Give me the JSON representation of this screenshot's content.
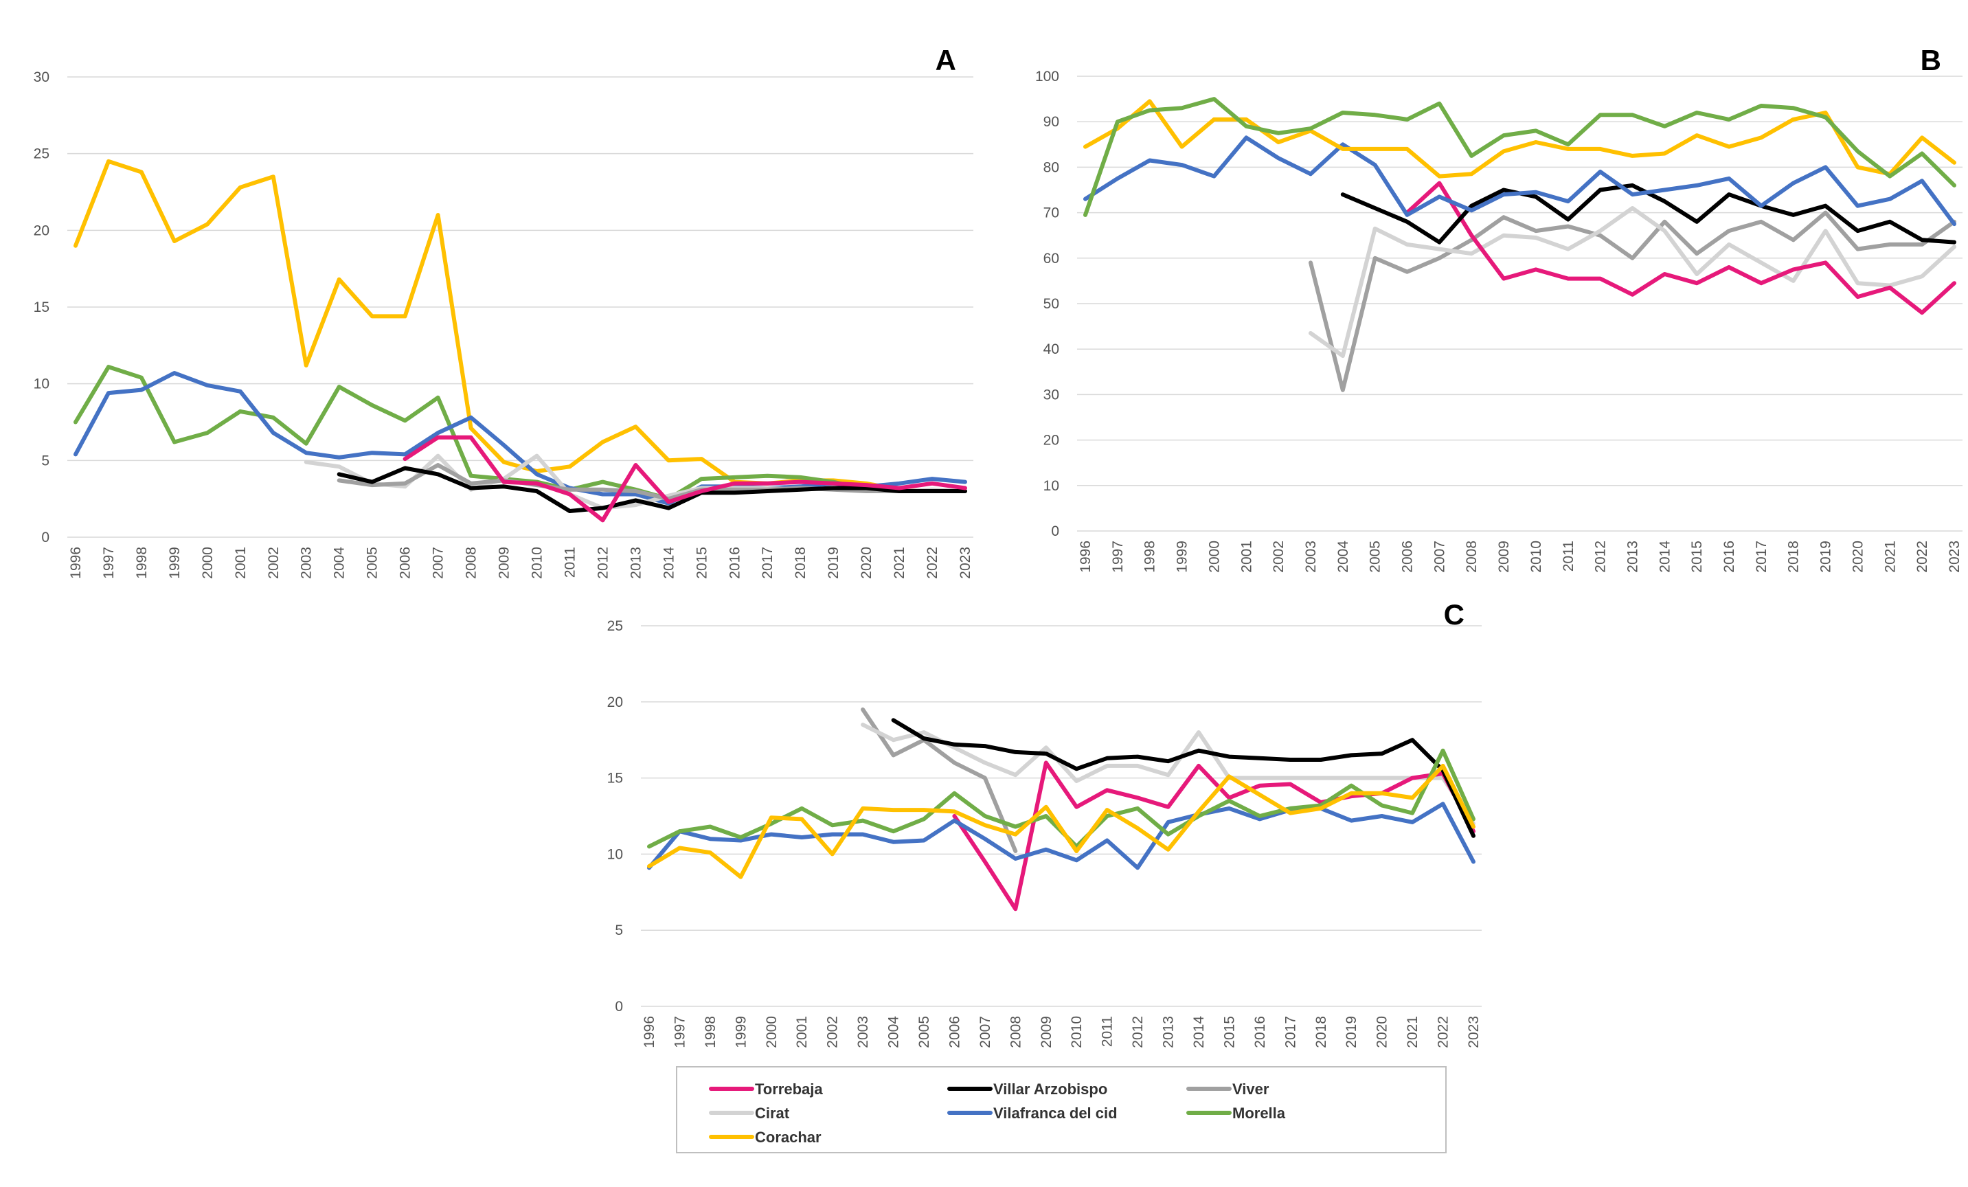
{
  "years": [
    "1996",
    "1997",
    "1998",
    "1999",
    "2000",
    "2001",
    "2002",
    "2003",
    "2004",
    "2005",
    "2006",
    "2007",
    "2008",
    "2009",
    "2010",
    "2011",
    "2012",
    "2013",
    "2014",
    "2015",
    "2016",
    "2017",
    "2018",
    "2019",
    "2020",
    "2021",
    "2022",
    "2023"
  ],
  "legend": {
    "items": [
      {
        "key": "Torrebaja",
        "label": "Torrebaja",
        "color": "#e6197a"
      },
      {
        "key": "Villar",
        "label": "Villar Arzobispo",
        "color": "#000000"
      },
      {
        "key": "Viver",
        "label": "Viver",
        "color": "#a0a0a0"
      },
      {
        "key": "Cirat",
        "label": "Cirat",
        "color": "#d3d3d3"
      },
      {
        "key": "Vilafranca",
        "label": "Vilafranca del cid",
        "color": "#4472c4"
      },
      {
        "key": "Morella",
        "label": "Morella",
        "color": "#70ad47"
      },
      {
        "key": "Corachar",
        "label": "Corachar",
        "color": "#ffc000"
      }
    ]
  },
  "chart_data": [
    {
      "type": "line",
      "panel": "A",
      "ylim": [
        0,
        30
      ],
      "yticks": [
        "0",
        "5",
        "10",
        "15",
        "20",
        "25",
        "30"
      ],
      "series": [
        {
          "name": "Corachar",
          "values": [
            19,
            24.5,
            23.8,
            19.3,
            20.4,
            22.8,
            23.5,
            11.2,
            16.8,
            14.4,
            14.4,
            21,
            7.1,
            4.9,
            4.3,
            4.6,
            6.2,
            7.2,
            5,
            5.1,
            3.6,
            3.5,
            3.7,
            3.7,
            3.5,
            3.1,
            3.0,
            3.0
          ]
        },
        {
          "name": "Morella",
          "values": [
            7.5,
            11.1,
            10.4,
            6.2,
            6.8,
            8.2,
            7.8,
            6.1,
            9.8,
            8.6,
            7.6,
            9.1,
            4.0,
            3.8,
            3.6,
            3.1,
            3.6,
            3.1,
            2.5,
            3.8,
            3.9,
            4.0,
            3.9,
            3.6,
            3.1,
            3.0,
            3.0,
            3.0
          ]
        },
        {
          "name": "Vilafranca del cid",
          "values": [
            5.4,
            9.4,
            9.6,
            10.7,
            9.9,
            9.5,
            6.8,
            5.5,
            5.2,
            5.5,
            5.4,
            6.8,
            7.8,
            6,
            4.1,
            3.2,
            2.8,
            2.8,
            2.2,
            3.3,
            3.3,
            3.2,
            3.3,
            3.5,
            3.3,
            3.5,
            3.8,
            3.6
          ]
        },
        {
          "name": "Cirat",
          "values": [
            null,
            null,
            null,
            null,
            null,
            null,
            null,
            4.9,
            4.6,
            3.5,
            3.3,
            5.3,
            3.1,
            3.8,
            5.3,
            2.8,
            1.9,
            2.1,
            2.7,
            3.2,
            3.2,
            3.2,
            3.1,
            3.2,
            3.2,
            3.0,
            3.1,
            3.0
          ]
        },
        {
          "name": "Viver",
          "values": [
            null,
            null,
            null,
            null,
            null,
            null,
            null,
            null,
            3.7,
            3.4,
            3.5,
            4.7,
            3.5,
            3.7,
            3.4,
            3.1,
            3.1,
            3.0,
            2.5,
            3.1,
            3.1,
            3.1,
            3.2,
            3.1,
            3.0,
            3.0,
            3.0,
            3.0
          ]
        },
        {
          "name": "Villar Arzobispo",
          "values": [
            null,
            null,
            null,
            null,
            null,
            null,
            null,
            null,
            4.1,
            3.6,
            4.5,
            4.1,
            3.2,
            3.3,
            3.0,
            1.7,
            1.9,
            2.4,
            1.9,
            2.9,
            2.9,
            3.0,
            3.1,
            3.2,
            3.2,
            3.0,
            3.0,
            3.0
          ]
        },
        {
          "name": "Torrebaja",
          "values": [
            null,
            null,
            null,
            null,
            null,
            null,
            null,
            null,
            null,
            null,
            5.1,
            6.5,
            6.5,
            3.6,
            3.5,
            2.8,
            1.1,
            4.7,
            2.3,
            3.0,
            3.5,
            3.5,
            3.6,
            3.5,
            3.4,
            3.2,
            3.5,
            3.2
          ]
        }
      ]
    },
    {
      "type": "line",
      "panel": "B",
      "ylim": [
        0,
        100
      ],
      "yticks": [
        "0",
        "10",
        "20",
        "30",
        "40",
        "50",
        "60",
        "70",
        "80",
        "90",
        "100"
      ],
      "series": [
        {
          "name": "Viver",
          "values": [
            null,
            null,
            null,
            null,
            null,
            null,
            null,
            59,
            31,
            60,
            57,
            60,
            64,
            69,
            66,
            67,
            65,
            60,
            68,
            61,
            66,
            68,
            64,
            70,
            62,
            63,
            63,
            68
          ]
        },
        {
          "name": "Cirat",
          "values": [
            null,
            null,
            null,
            null,
            null,
            null,
            null,
            43.5,
            38.5,
            66.5,
            63,
            62,
            61,
            65,
            64.5,
            62,
            66,
            71,
            66,
            56.5,
            63,
            59,
            55,
            66,
            54.5,
            54,
            56,
            62.5
          ]
        },
        {
          "name": "Torrebaja",
          "values": [
            null,
            null,
            null,
            null,
            null,
            null,
            null,
            null,
            null,
            null,
            70,
            76.5,
            65,
            55.5,
            57.5,
            55.5,
            55.5,
            52,
            56.5,
            54.5,
            58,
            54.5,
            57.5,
            59,
            51.5,
            53.5,
            48,
            54.5
          ]
        },
        {
          "name": "Villar Arzobispo",
          "values": [
            null,
            null,
            null,
            null,
            null,
            null,
            null,
            null,
            74,
            71,
            68,
            63.5,
            71.5,
            75,
            73.5,
            68.5,
            75,
            76,
            72.5,
            68,
            74,
            71.5,
            69.5,
            71.5,
            66,
            68,
            64,
            63.5
          ]
        },
        {
          "name": "Vilafranca del cid",
          "values": [
            73,
            77.5,
            81.5,
            80.5,
            78,
            86.5,
            82,
            78.5,
            85,
            80.5,
            69.5,
            73.5,
            70.5,
            74,
            74.5,
            72.5,
            79,
            74,
            75,
            76,
            77.5,
            71.5,
            76.5,
            80,
            71.5,
            73,
            77,
            67.5
          ]
        },
        {
          "name": "Corachar",
          "values": [
            84.5,
            88.5,
            94.5,
            84.5,
            90.5,
            90.5,
            85.5,
            88,
            84,
            84,
            84,
            78,
            78.5,
            83.5,
            85.5,
            84,
            84,
            82.5,
            83,
            87,
            84.5,
            86.5,
            90.5,
            92,
            80,
            78.5,
            86.5,
            81
          ]
        },
        {
          "name": "Morella",
          "values": [
            69.5,
            90,
            92.5,
            93,
            95,
            89,
            87.5,
            88.5,
            92,
            91.5,
            90.5,
            94,
            82.5,
            87,
            88,
            85,
            91.5,
            91.5,
            89,
            92,
            90.5,
            93.5,
            93,
            91,
            83.5,
            78,
            83,
            76
          ]
        }
      ]
    },
    {
      "type": "line",
      "panel": "C",
      "ylim": [
        0,
        25
      ],
      "yticks": [
        "0",
        "5",
        "10",
        "15",
        "20",
        "25"
      ],
      "series": [
        {
          "name": "Viver",
          "values": [
            null,
            null,
            null,
            null,
            null,
            null,
            null,
            19.5,
            16.5,
            17.5,
            16,
            15,
            10.2,
            null,
            null,
            null,
            null,
            null,
            null,
            null,
            null,
            null,
            null,
            null,
            null,
            null,
            null,
            null
          ]
        },
        {
          "name": "Cirat",
          "values": [
            null,
            null,
            null,
            null,
            null,
            null,
            null,
            18.5,
            17.5,
            18,
            17,
            16,
            15.2,
            17,
            14.8,
            15.8,
            15.8,
            15.2,
            18,
            15,
            15,
            15,
            15,
            15,
            15,
            15,
            15,
            12
          ]
        },
        {
          "name": "Torrebaja",
          "values": [
            null,
            null,
            null,
            null,
            null,
            null,
            null,
            null,
            null,
            null,
            12.5,
            9.5,
            6.4,
            16,
            13.1,
            14.2,
            13.7,
            13.1,
            15.8,
            13.7,
            14.5,
            14.6,
            13.4,
            13.8,
            14,
            15,
            15.3,
            11.5
          ]
        },
        {
          "name": "Villar Arzobispo",
          "values": [
            null,
            null,
            null,
            null,
            null,
            null,
            null,
            null,
            18.8,
            17.6,
            17.2,
            17.1,
            16.7,
            16.6,
            15.6,
            16.3,
            16.4,
            16.1,
            16.8,
            16.4,
            16.3,
            16.2,
            16.2,
            16.5,
            16.6,
            17.5,
            15.5,
            11.2
          ]
        },
        {
          "name": "Vilafranca del cid",
          "values": [
            9.1,
            11.5,
            11.0,
            10.9,
            11.3,
            11.1,
            11.3,
            11.3,
            10.8,
            10.9,
            12.2,
            11.0,
            9.7,
            10.3,
            9.6,
            10.9,
            9.1,
            12.1,
            12.6,
            13.0,
            12.3,
            12.9,
            13.0,
            12.2,
            12.5,
            12.1,
            13.3,
            9.5
          ]
        },
        {
          "name": "Morella",
          "values": [
            10.5,
            11.5,
            11.8,
            11.1,
            12.0,
            13.0,
            11.9,
            12.2,
            11.5,
            12.3,
            14.0,
            12.5,
            11.8,
            12.5,
            10.5,
            12.5,
            13.0,
            11.3,
            12.5,
            13.5,
            12.5,
            13.0,
            13.2,
            14.5,
            13.2,
            12.7,
            16.8,
            12.3
          ]
        },
        {
          "name": "Corachar",
          "values": [
            9.2,
            10.4,
            10.1,
            8.5,
            12.4,
            12.3,
            10.0,
            13.0,
            12.9,
            12.9,
            12.8,
            11.9,
            11.3,
            13.1,
            10.2,
            12.9,
            11.7,
            10.3,
            12.8,
            15.1,
            13.9,
            12.7,
            13.0,
            14.0,
            14.0,
            13.7,
            15.8,
            11.8
          ]
        }
      ]
    }
  ]
}
